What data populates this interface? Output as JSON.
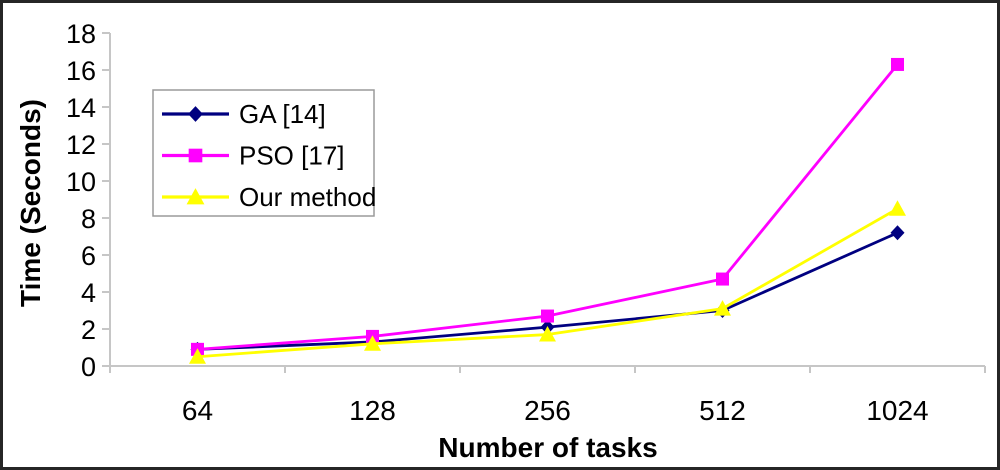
{
  "chart_data": {
    "type": "line",
    "title": "",
    "xlabel": "Number of tasks",
    "ylabel": "Time (Seconds)",
    "categories": [
      "64",
      "128",
      "256",
      "512",
      "1024"
    ],
    "series": [
      {
        "name": "GA [14]",
        "color": "#000080",
        "marker": "diamond",
        "values": [
          0.9,
          1.3,
          2.1,
          3.0,
          7.2
        ]
      },
      {
        "name": "PSO [17]",
        "color": "#FF00FF",
        "marker": "square",
        "values": [
          0.9,
          1.6,
          2.7,
          4.7,
          16.3
        ]
      },
      {
        "name": "Our method",
        "color": "#FFFF00",
        "marker": "triangle",
        "values": [
          0.5,
          1.2,
          1.7,
          3.1,
          8.5
        ]
      }
    ],
    "ylim": [
      0,
      18
    ],
    "yticks": [
      0,
      2,
      4,
      6,
      8,
      10,
      12,
      14,
      16,
      18
    ],
    "grid": false,
    "legend_position": "upper-left-inside",
    "colors": {
      "axis_line": "#c6c6c6",
      "tick_text": "#000000",
      "legend_border": "#9a9a9a",
      "legend_background": "#ffffff",
      "plot_background": "#ffffff",
      "frame_border": "#262626"
    }
  }
}
